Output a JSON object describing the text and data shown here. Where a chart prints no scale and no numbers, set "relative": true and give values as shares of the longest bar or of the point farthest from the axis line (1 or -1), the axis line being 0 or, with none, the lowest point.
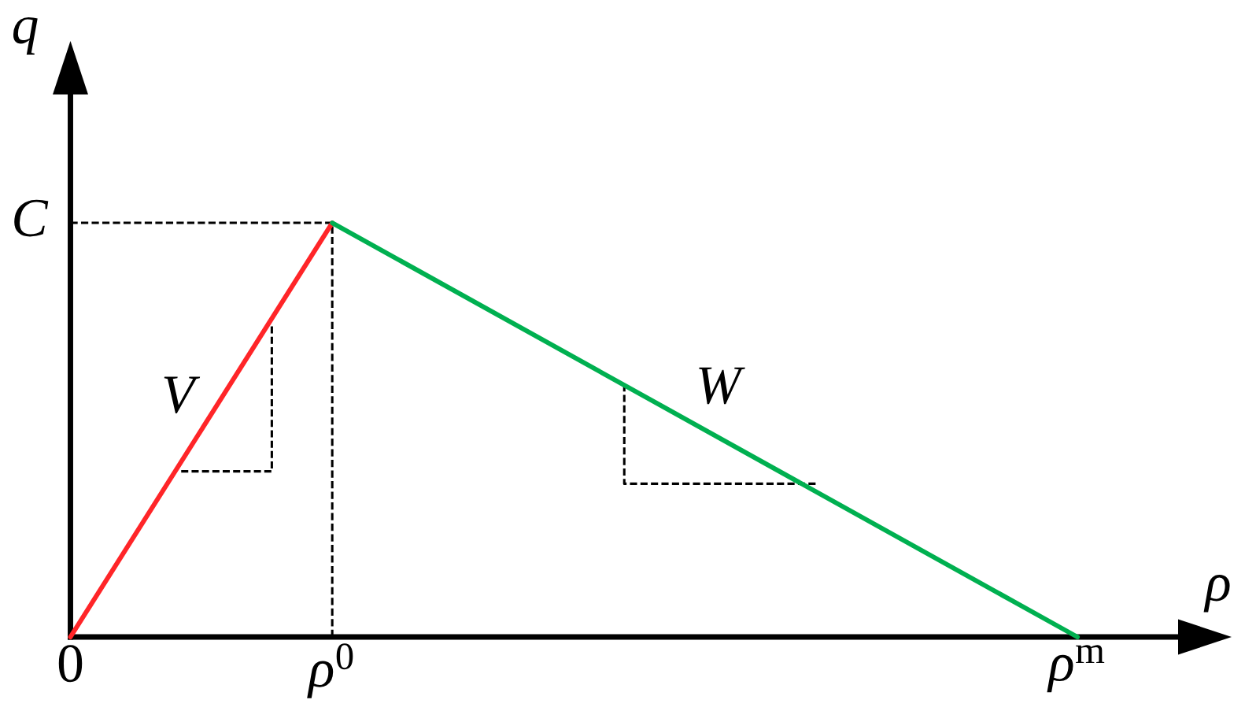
{
  "chart_data": {
    "type": "line",
    "relative": true,
    "xlabel": "ρ",
    "ylabel": "q",
    "line_style": "solid",
    "tick_labels": "x",
    "xlim": [
      0,
      1.1
    ],
    "xticks": [
      0,
      {
        "value": 0.26,
        "label": "ρ$^{0}$"
      },
      {
        "value": 1,
        "label": "ρ$^{m}$"
      }
    ],
    "annotations": [
      {
        "text": "C",
        "x": 0,
        "y": 1
      }
    ],
    "series": [
      {
        "color": "#000000",
        "line_style": "dashed",
        "x": [
          0,
          0.26,
          0.26
        ],
        "values": [
          1,
          1,
          0
        ]
      },
      {
        "color": "#000000",
        "line_style": "dashed",
        "x": [
          0.11,
          0.2,
          0.2
        ],
        "values": [
          0.4,
          0.4,
          0.75
        ]
      },
      {
        "color": "#000000",
        "line_style": "dashed",
        "x": [
          0.55,
          0.55,
          0.74
        ],
        "values": [
          0.61,
          0.37,
          0.37
        ]
      },
      {
        "name": "V",
        "color": "#ff2528",
        "x": [
          0,
          0.26
        ],
        "values": [
          0,
          1
        ]
      },
      {
        "name": "W",
        "color": "#00b050",
        "x": [
          0.26,
          1
        ],
        "values": [
          1,
          0
        ]
      }
    ]
  }
}
